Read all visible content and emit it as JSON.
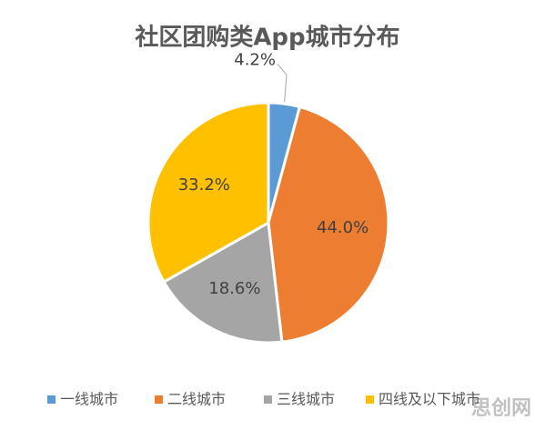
{
  "chart_data": {
    "type": "pie",
    "title": "社区团购类App城市分布",
    "categories": [
      "一线城市",
      "二线城市",
      "三线城市",
      "四线及以下城市"
    ],
    "values": [
      4.2,
      44.0,
      18.6,
      33.2
    ],
    "value_labels": [
      "4.2%",
      "44.0%",
      "18.6%",
      "33.2%"
    ],
    "colors": [
      "#5b9bd5",
      "#ed7d31",
      "#a5a5a5",
      "#ffc000"
    ],
    "legend": "bottom"
  },
  "watermark": "思创网"
}
